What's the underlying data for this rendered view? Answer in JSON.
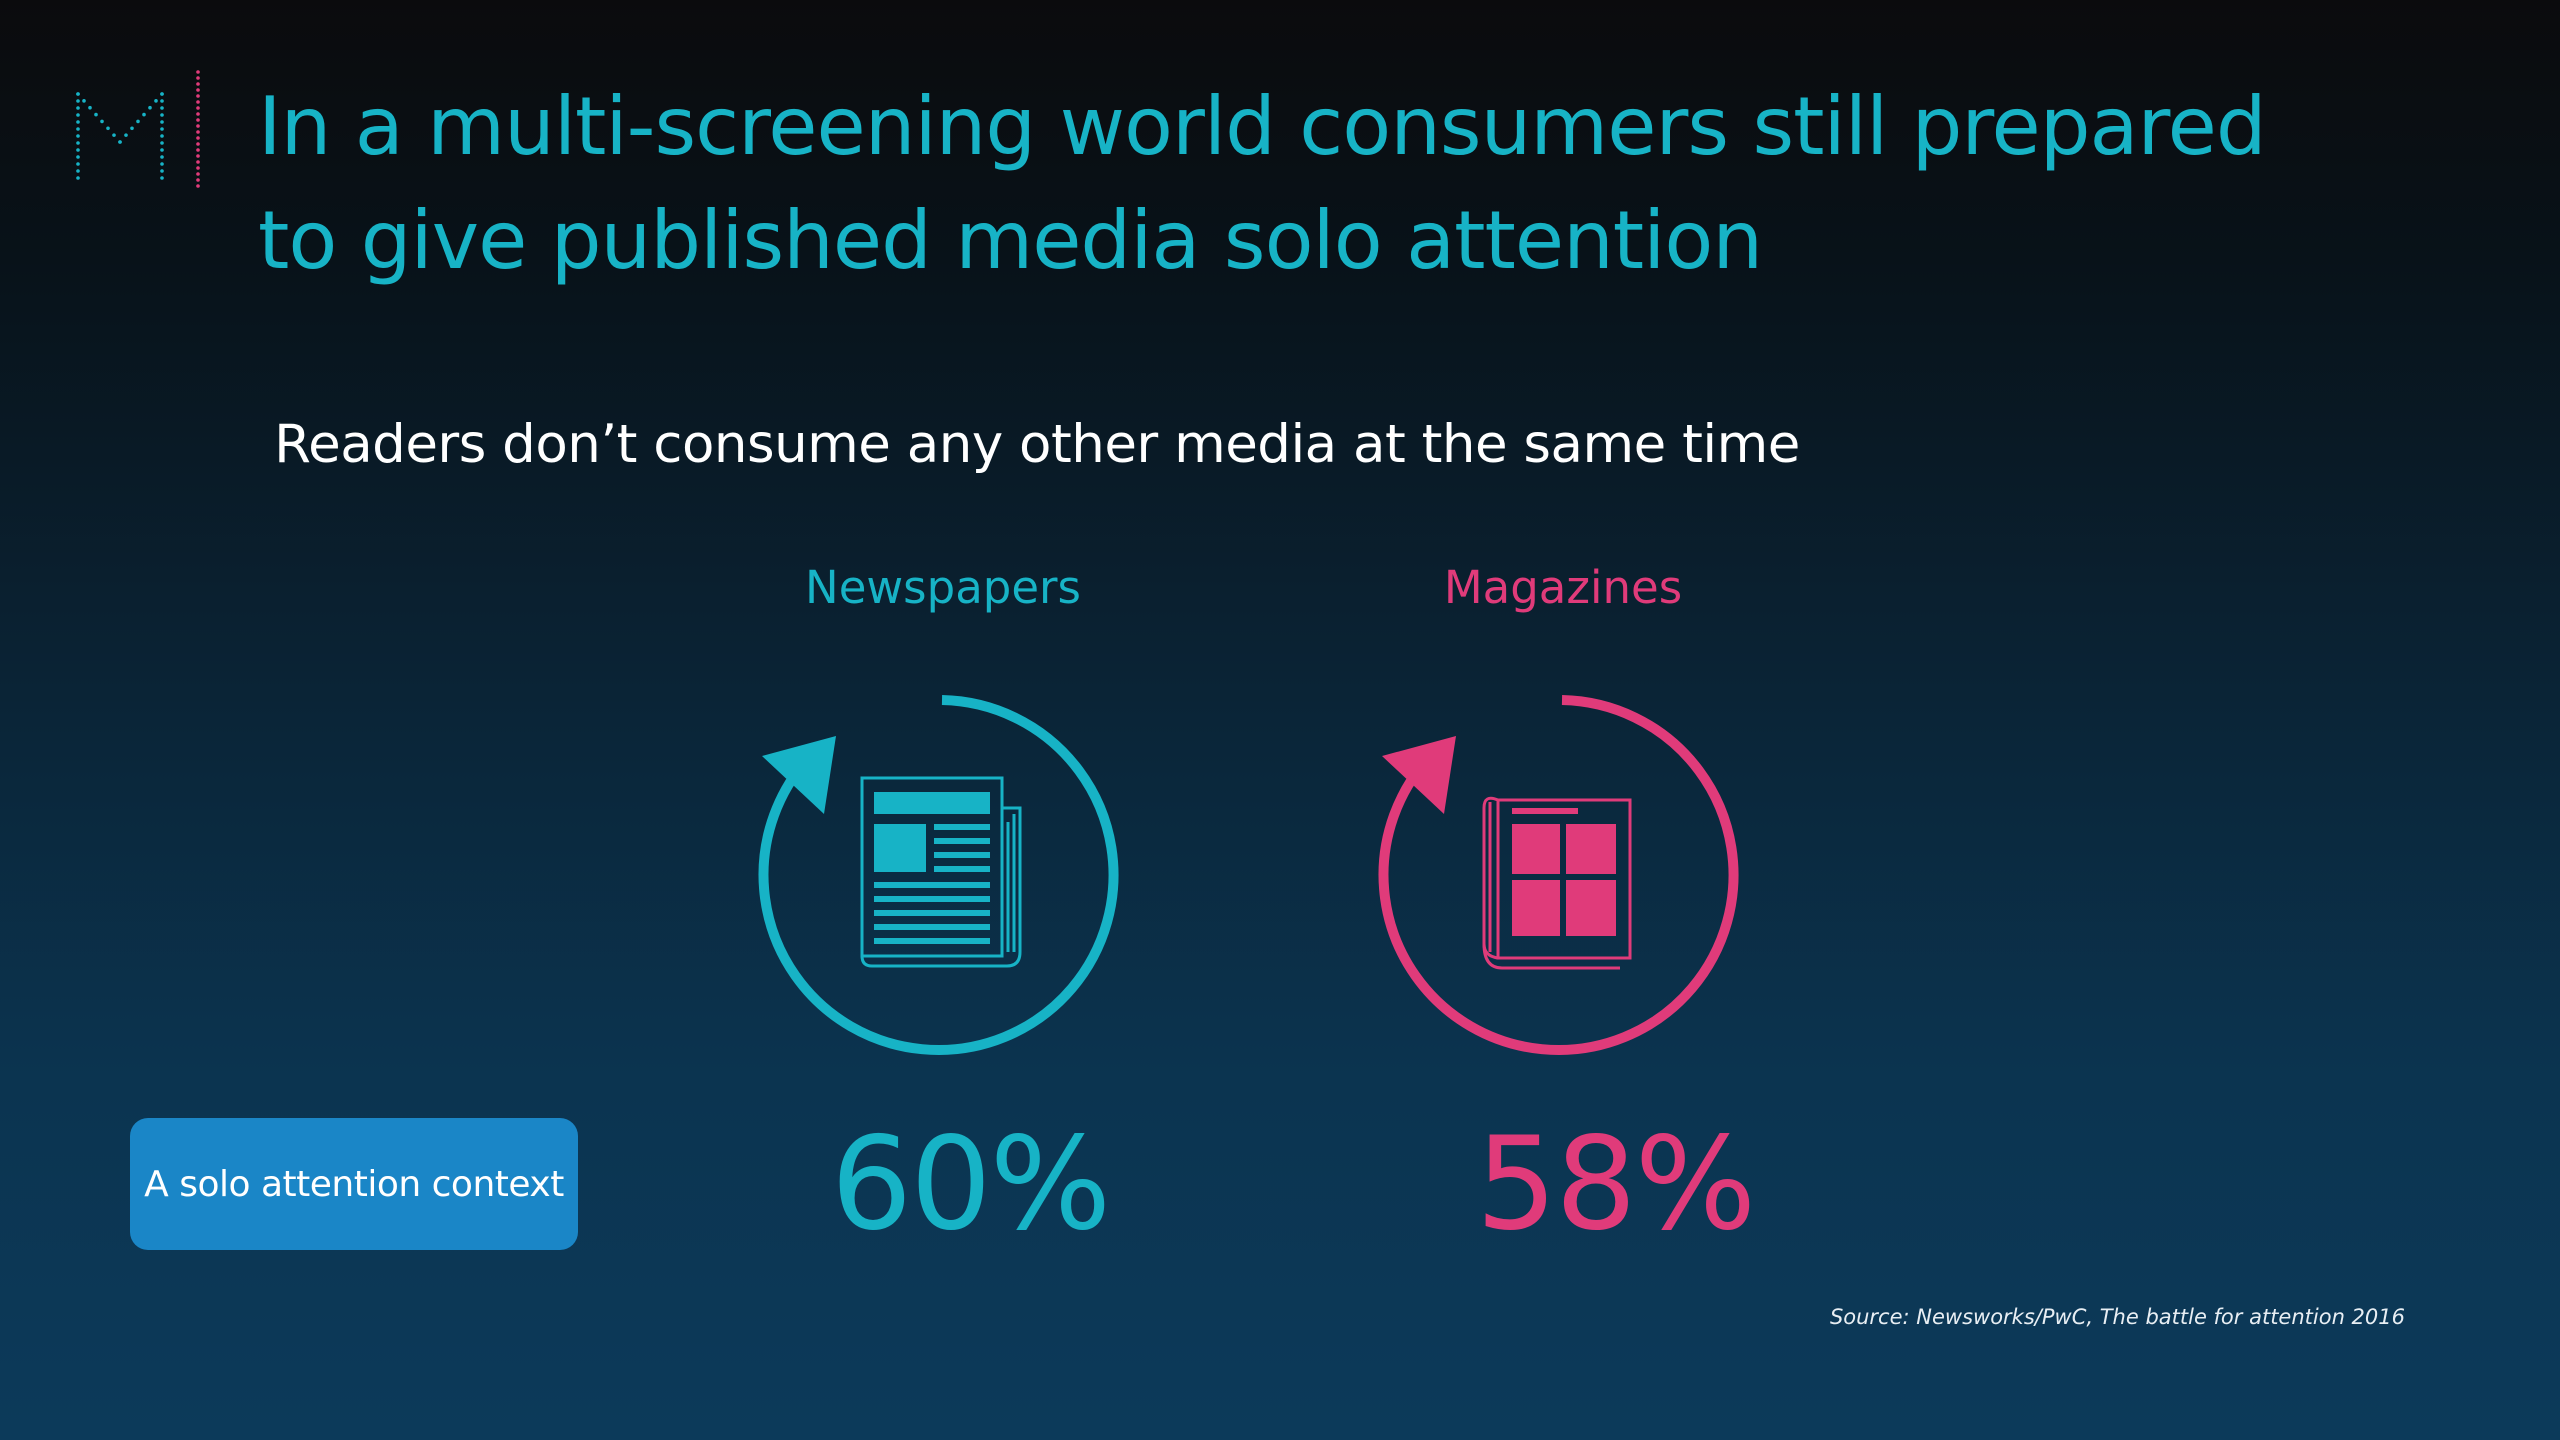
{
  "colors": {
    "accent_teal": "#17b3c6",
    "accent_pink": "#e03b7a",
    "button_blue": "#1a86c7",
    "text_white": "#ffffff"
  },
  "logo": {
    "letter": "M"
  },
  "title": {
    "line1": "In a multi-screening world consumers still prepared",
    "line2": "to give published media solo attention"
  },
  "subtitle": "Readers don’t consume any other media at the same time",
  "columns": [
    {
      "label": "Newspapers",
      "value": "60%",
      "icon": "newspaper-icon",
      "color": "#17b3c6"
    },
    {
      "label": "Magazines",
      "value": "58%",
      "icon": "magazine-icon",
      "color": "#e03b7a"
    }
  ],
  "cta_label": "A solo attention context",
  "source": "Source:  Newsworks/PwC, The battle for attention 2016"
}
